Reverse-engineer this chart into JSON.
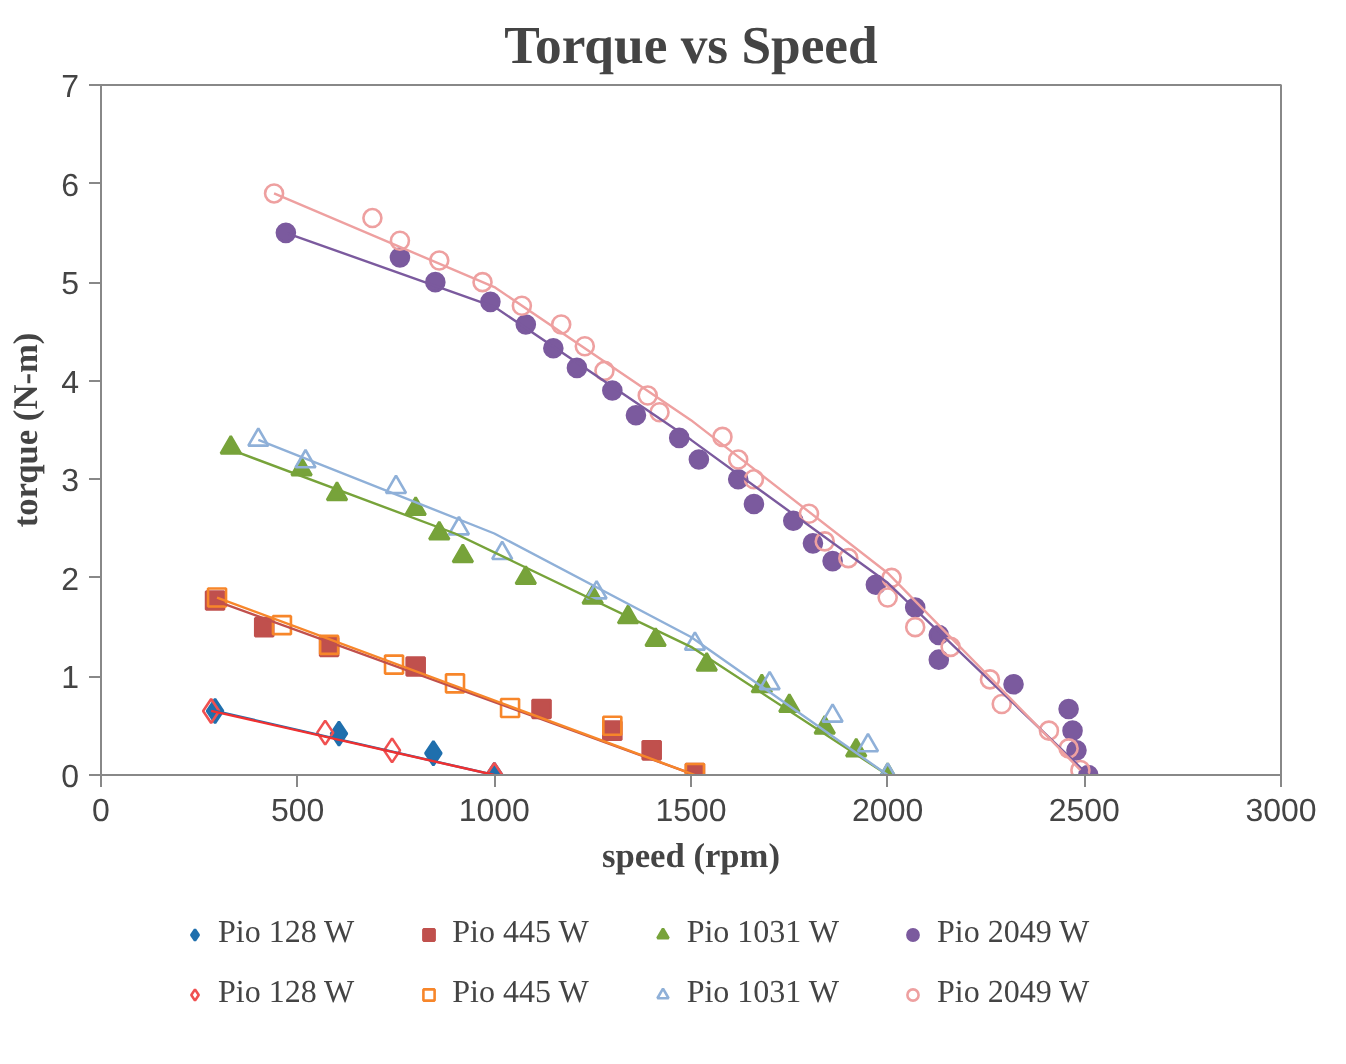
{
  "chart_data": {
    "type": "scatter",
    "title": "Torque vs Speed",
    "xlabel": "speed (rpm)",
    "ylabel": "torque (N-m)",
    "xlim": [
      0,
      3000
    ],
    "xticks": [
      0,
      500,
      1000,
      1500,
      2000,
      2500,
      3000
    ],
    "ylim": [
      0,
      7
    ],
    "yticks": [
      0,
      1,
      2,
      3,
      4,
      5,
      6,
      7
    ],
    "grid": false,
    "legend": "bottom",
    "series": [
      {
        "name": "Pio 128 W",
        "color": "#1f6fad",
        "marker": "diamond",
        "x": [
          290,
          605,
          845,
          1000
        ],
        "values": [
          0.65,
          0.42,
          0.22,
          0
        ]
      },
      {
        "name": "Pio 445 W",
        "color": "#c0504d",
        "marker": "square",
        "x": [
          290,
          415,
          580,
          800,
          1120,
          1300,
          1400,
          1510
        ],
        "values": [
          1.77,
          1.5,
          1.3,
          1.1,
          0.67,
          0.45,
          0.25,
          0.02
        ]
      },
      {
        "name": "Pio 1031 W",
        "color": "#77a33a",
        "marker": "triangle",
        "x": [
          330,
          510,
          600,
          800,
          860,
          920,
          1080,
          1250,
          1340,
          1410,
          1540,
          1680,
          1750,
          1840,
          1920,
          2000
        ],
        "values": [
          3.32,
          3.1,
          2.85,
          2.7,
          2.45,
          2.22,
          2.0,
          1.8,
          1.6,
          1.37,
          1.12,
          0.9,
          0.7,
          0.48,
          0.25,
          0
        ]
      },
      {
        "name": "Pio 2049 W",
        "color": "#7b5a9e",
        "marker": "circle",
        "x": [
          470,
          760,
          850,
          990,
          1080,
          1150,
          1210,
          1300,
          1360,
          1470,
          1520,
          1620,
          1660,
          1760,
          1810,
          1860,
          1970,
          2070,
          2130,
          2130,
          2320,
          2460,
          2470,
          2480,
          2510
        ],
        "values": [
          5.5,
          5.25,
          5.0,
          4.8,
          4.57,
          4.33,
          4.13,
          3.9,
          3.65,
          3.42,
          3.2,
          3.0,
          2.75,
          2.58,
          2.35,
          2.17,
          1.93,
          1.7,
          1.42,
          1.17,
          0.92,
          0.67,
          0.45,
          0.25,
          0
        ]
      },
      {
        "name": "Pio 128 W",
        "color": "#f05050",
        "marker": "diamond-open",
        "x": [
          280,
          570,
          740,
          1000
        ],
        "values": [
          0.65,
          0.43,
          0.25,
          0
        ]
      },
      {
        "name": "Pio 445 W",
        "color": "#f7862a",
        "marker": "square-open",
        "x": [
          295,
          460,
          580,
          745,
          900,
          1040,
          1300,
          1510
        ],
        "values": [
          1.8,
          1.52,
          1.32,
          1.12,
          0.93,
          0.68,
          0.5,
          0.02
        ]
      },
      {
        "name": "Pio 1031 W",
        "color": "#8fb0d8",
        "marker": "triangle-open",
        "x": [
          400,
          520,
          750,
          910,
          1020,
          1260,
          1510,
          1700,
          1860,
          1950,
          2000
        ],
        "values": [
          3.4,
          3.18,
          2.92,
          2.5,
          2.25,
          1.85,
          1.33,
          0.93,
          0.6,
          0.3,
          0
        ]
      },
      {
        "name": "Pio 2049 W",
        "color": "#eea0a0",
        "marker": "circle-open",
        "x": [
          440,
          690,
          760,
          860,
          970,
          1070,
          1170,
          1230,
          1280,
          1390,
          1420,
          1580,
          1620,
          1660,
          1800,
          1840,
          1900,
          2010,
          2000,
          2070,
          2160,
          2260,
          2290,
          2410,
          2460,
          2490
        ],
        "values": [
          5.9,
          5.65,
          5.42,
          5.22,
          5.0,
          4.76,
          4.57,
          4.35,
          4.1,
          3.85,
          3.68,
          3.43,
          3.2,
          3.0,
          2.65,
          2.37,
          2.2,
          2.0,
          1.8,
          1.5,
          1.3,
          0.97,
          0.72,
          0.45,
          0.27,
          0.05
        ]
      },
      {
        "type": "line",
        "color": "#1f6fad",
        "x": [
          290,
          1000
        ],
        "values": [
          0.65,
          0
        ]
      },
      {
        "type": "line",
        "color": "#f03030",
        "x": [
          280,
          1000
        ],
        "values": [
          0.65,
          0
        ]
      },
      {
        "type": "line",
        "color": "#c0504d",
        "x": [
          290,
          1510
        ],
        "values": [
          1.77,
          0
        ]
      },
      {
        "type": "line",
        "color": "#f7862a",
        "x": [
          295,
          1510
        ],
        "values": [
          1.8,
          0
        ]
      },
      {
        "type": "line",
        "color": "#77a33a",
        "x": [
          330,
          900,
          1500,
          2000
        ],
        "values": [
          3.3,
          2.45,
          1.3,
          0
        ]
      },
      {
        "type": "line",
        "color": "#8fb0d8",
        "x": [
          400,
          1000,
          1500,
          2000
        ],
        "values": [
          3.4,
          2.45,
          1.4,
          0
        ]
      },
      {
        "type": "line",
        "color": "#7b5a9e",
        "x": [
          470,
          1000,
          1500,
          2000,
          2510
        ],
        "values": [
          5.5,
          4.75,
          3.4,
          1.95,
          0
        ]
      },
      {
        "type": "line",
        "color": "#eea0a0",
        "x": [
          440,
          1000,
          1500,
          2000,
          2490
        ],
        "values": [
          5.9,
          4.95,
          3.6,
          2.05,
          0.05
        ]
      }
    ]
  }
}
